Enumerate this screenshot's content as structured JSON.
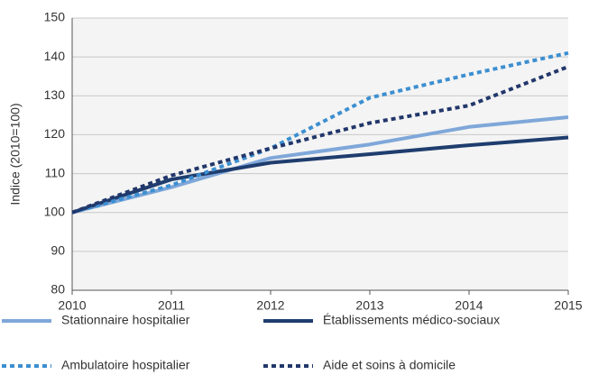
{
  "chart_data": {
    "type": "line",
    "y_label": "Indice (2010=100)",
    "x": [
      2010,
      2011,
      2012,
      2013,
      2014,
      2015
    ],
    "xlim": [
      2010,
      2015
    ],
    "xticks": [
      2010,
      2011,
      2012,
      2013,
      2014,
      2015
    ],
    "ylim": [
      80,
      150
    ],
    "yticks": [
      80,
      90,
      100,
      110,
      120,
      130,
      140,
      150
    ],
    "grid": true,
    "legend": "bottom",
    "series": [
      {
        "name": "Stationnaire hospitalier",
        "color": "#7fa7d9",
        "dash": "solid",
        "values": [
          100,
          106.5,
          114,
          117.5,
          122,
          124.5
        ]
      },
      {
        "name": "Établissements médico-sociaux",
        "color": "#1f3d6e",
        "dash": "solid",
        "values": [
          100,
          108.5,
          112.8,
          115,
          117.3,
          119.3
        ]
      },
      {
        "name": "Ambulatoire hospitalier",
        "color": "#3c8fd1",
        "dash": "dotted",
        "values": [
          100,
          107,
          116.5,
          129.5,
          135.5,
          141
        ]
      },
      {
        "name": "Aide et soins à domicile",
        "color": "#22376b",
        "dash": "dotted",
        "values": [
          100,
          109.5,
          116.5,
          123,
          127.5,
          137.5
        ]
      }
    ]
  }
}
